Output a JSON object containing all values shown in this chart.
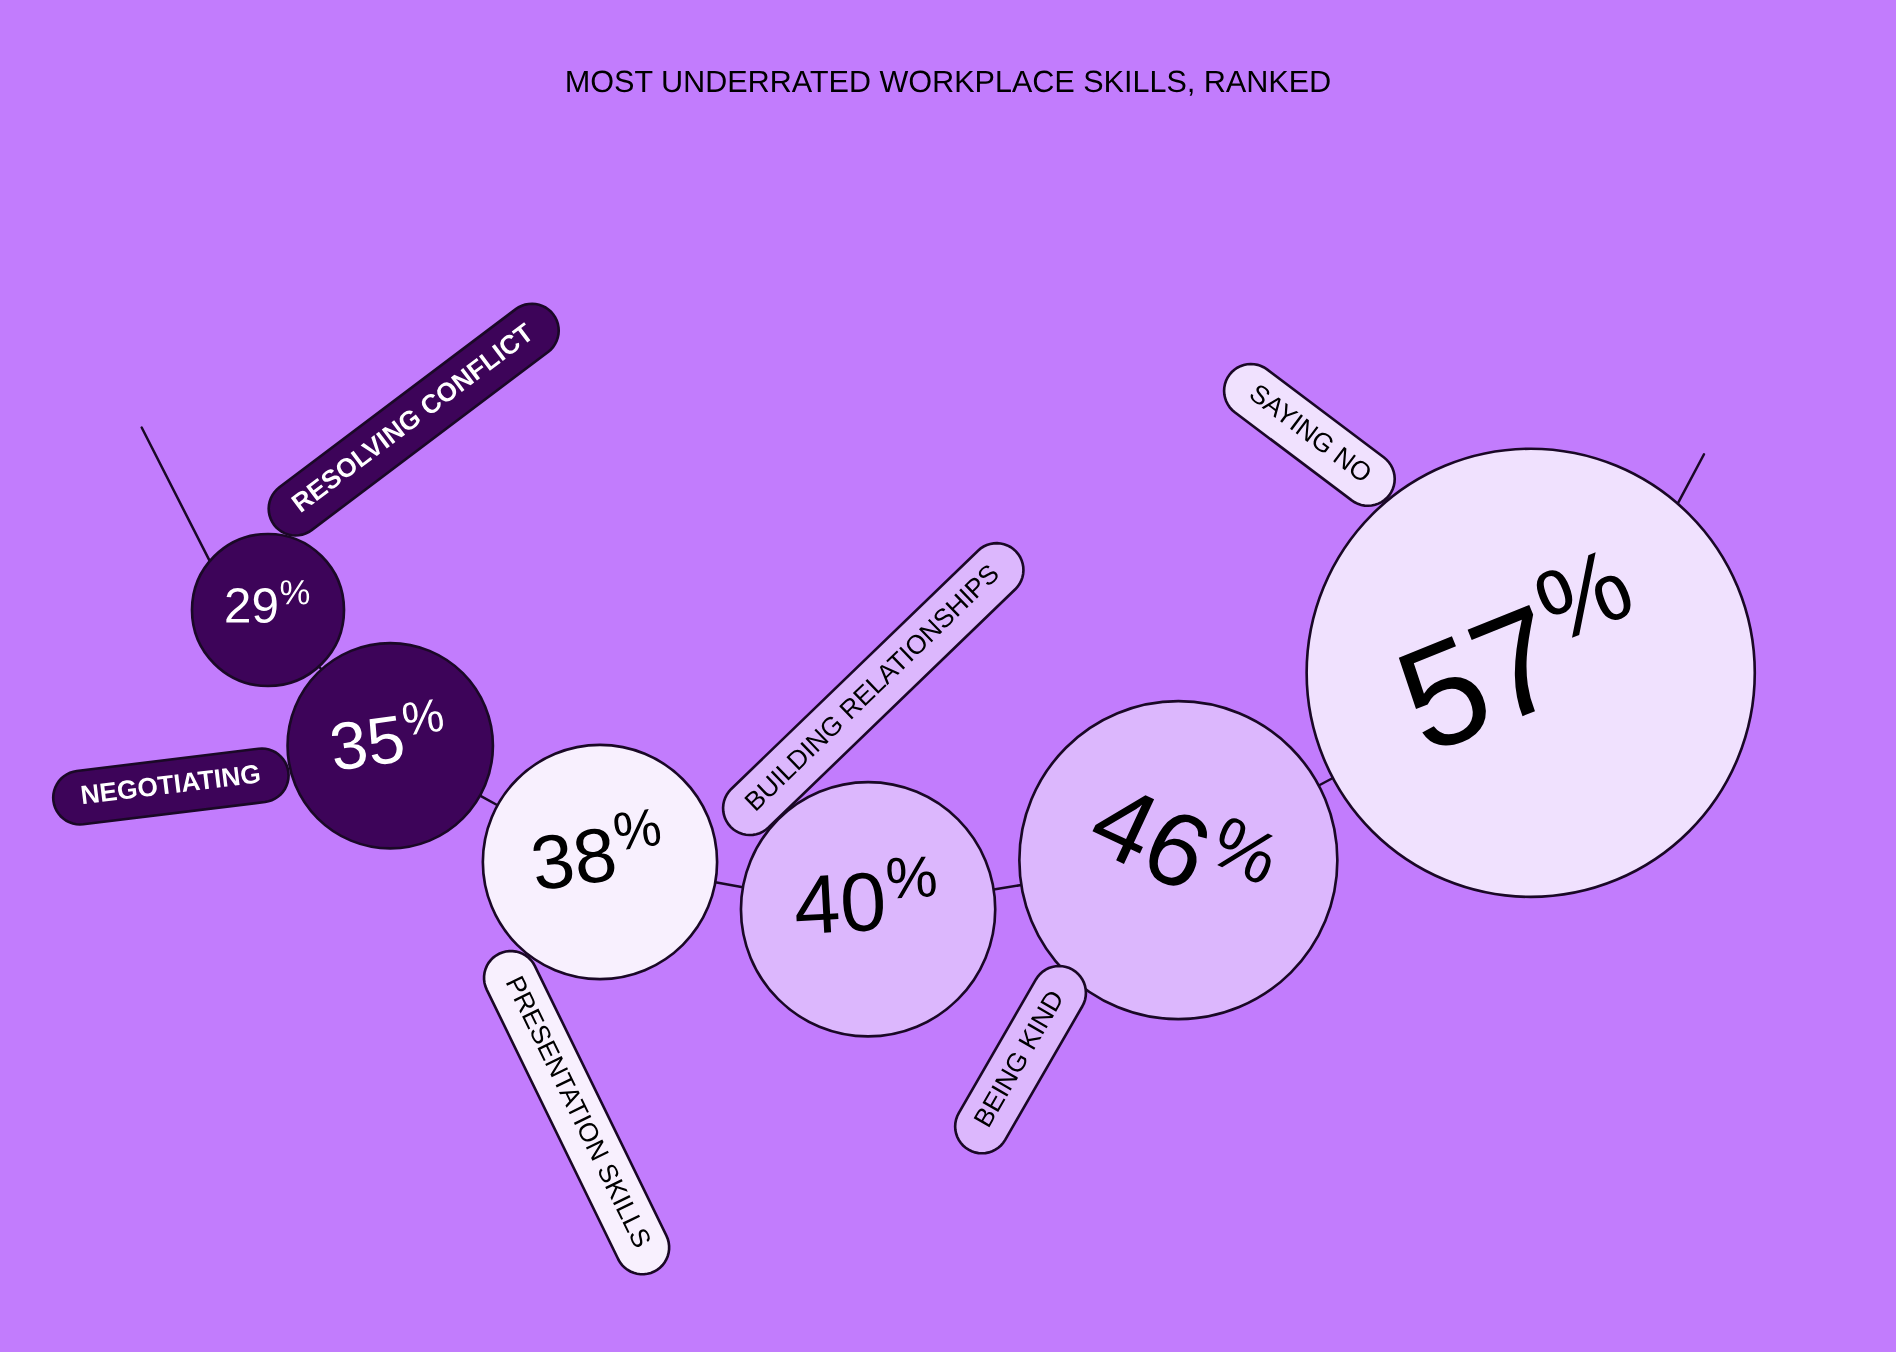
{
  "chart_data": {
    "type": "other",
    "title": "MOST UNDERRATED WORKPLACE SKILLS, RANKED",
    "categories": [
      "RESOLVING CONFLICT",
      "NEGOTIATING",
      "PRESENTATION SKILLS",
      "BUILDING RELATIONSHIPS",
      "BEING KIND",
      "SAYING NO"
    ],
    "values": [
      29,
      35,
      38,
      40,
      46,
      57
    ],
    "value_labels": [
      "29$^{%}$",
      "35$^{%}$",
      "38$^{%}$",
      "40$^{%}$",
      "46$^{%}$",
      "57$^{%}$"
    ],
    "colors": [
      "#3d0459",
      "#3d0459",
      "#f8f0fe",
      "#dcb7fd",
      "#dcb7fd",
      "#f0e1fe"
    ]
  }
}
